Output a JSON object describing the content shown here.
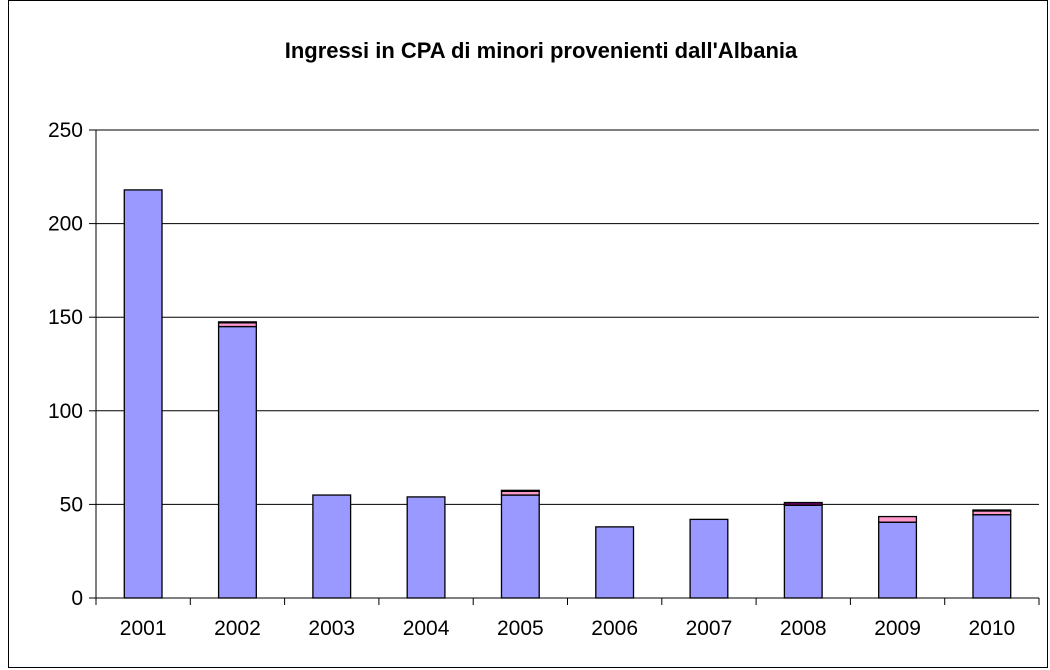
{
  "chart_data": {
    "type": "bar",
    "stacked": true,
    "title": "Ingressi in CPA di minori provenienti dall'Albania",
    "xlabel": "",
    "ylabel": "",
    "categories": [
      "2001",
      "2002",
      "2003",
      "2004",
      "2005",
      "2006",
      "2007",
      "2008",
      "2009",
      "2010"
    ],
    "ylim": [
      0,
      250
    ],
    "yticks": [
      0,
      50,
      100,
      150,
      200,
      250
    ],
    "grid": true,
    "legend": "none",
    "series": [
      {
        "values": [
          218,
          145,
          55,
          54,
          55,
          38,
          42,
          49.5,
          40.5,
          44.5
        ],
        "color": "#9999ff"
      },
      {
        "values": [
          0,
          2,
          0,
          0,
          2,
          0,
          0,
          0,
          3,
          2
        ],
        "color": "#ff99cc"
      },
      {
        "values": [
          0,
          0.5,
          0,
          0,
          0.5,
          0,
          0,
          1.5,
          0,
          0.5
        ],
        "color": "#660066"
      }
    ]
  }
}
